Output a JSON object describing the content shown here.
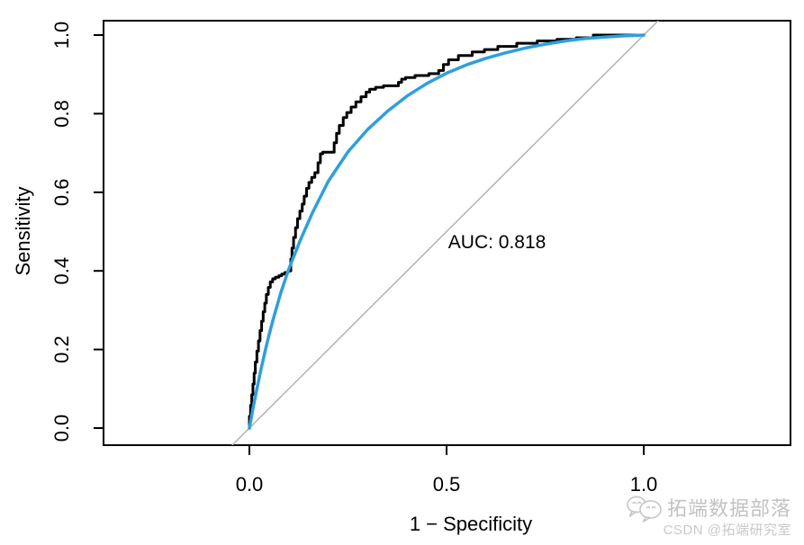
{
  "chart_data": {
    "type": "line",
    "title": "",
    "xlabel": "1 − Specificity",
    "ylabel": "Sensitivity",
    "xlim": [
      0,
      1
    ],
    "ylim": [
      0,
      1
    ],
    "grid": false,
    "legend": "none",
    "aspect_ratio": 1,
    "box_color": "#000000",
    "x_ticks": {
      "values": [
        0.0,
        0.5,
        1.0
      ],
      "labels": [
        "0.0",
        "0.5",
        "1.0"
      ]
    },
    "y_ticks": {
      "values": [
        0.0,
        0.2,
        0.4,
        0.6,
        0.8,
        1.0
      ],
      "labels": [
        "0.0",
        "0.2",
        "0.4",
        "0.6",
        "0.8",
        "1.0"
      ]
    },
    "annotation": {
      "text": "AUC: 0.818",
      "x": 0.657,
      "y": 0.476,
      "color": "#000000"
    },
    "auc": 0.818,
    "series": [
      {
        "name": "chance-diagonal",
        "type": "reference-line",
        "color": "#b3b3b3",
        "width": 1.5,
        "from": [
          0,
          0
        ],
        "to": [
          1,
          1
        ]
      },
      {
        "name": "empirical-roc",
        "type": "step",
        "color": "#000000",
        "width": 3,
        "points": [
          [
            0.0,
            0.0
          ],
          [
            0.003,
            0.03
          ],
          [
            0.006,
            0.058
          ],
          [
            0.009,
            0.085
          ],
          [
            0.012,
            0.112
          ],
          [
            0.015,
            0.14
          ],
          [
            0.019,
            0.168
          ],
          [
            0.023,
            0.196
          ],
          [
            0.027,
            0.222
          ],
          [
            0.031,
            0.248
          ],
          [
            0.035,
            0.272
          ],
          [
            0.039,
            0.296
          ],
          [
            0.043,
            0.318
          ],
          [
            0.048,
            0.34
          ],
          [
            0.053,
            0.358
          ],
          [
            0.059,
            0.372
          ],
          [
            0.066,
            0.38
          ],
          [
            0.075,
            0.384
          ],
          [
            0.082,
            0.388
          ],
          [
            0.09,
            0.392
          ],
          [
            0.098,
            0.396
          ],
          [
            0.105,
            0.4
          ],
          [
            0.108,
            0.43
          ],
          [
            0.112,
            0.458
          ],
          [
            0.117,
            0.485
          ],
          [
            0.122,
            0.51
          ],
          [
            0.128,
            0.533
          ],
          [
            0.134,
            0.552
          ],
          [
            0.139,
            0.57
          ],
          [
            0.145,
            0.59
          ],
          [
            0.151,
            0.61
          ],
          [
            0.158,
            0.625
          ],
          [
            0.166,
            0.638
          ],
          [
            0.174,
            0.65
          ],
          [
            0.18,
            0.675
          ],
          [
            0.186,
            0.698
          ],
          [
            0.215,
            0.702
          ],
          [
            0.221,
            0.726
          ],
          [
            0.228,
            0.75
          ],
          [
            0.238,
            0.77
          ],
          [
            0.247,
            0.79
          ],
          [
            0.258,
            0.803
          ],
          [
            0.27,
            0.817
          ],
          [
            0.283,
            0.83
          ],
          [
            0.296,
            0.843
          ],
          [
            0.305,
            0.855
          ],
          [
            0.32,
            0.862
          ],
          [
            0.34,
            0.867
          ],
          [
            0.378,
            0.871
          ],
          [
            0.386,
            0.88
          ],
          [
            0.396,
            0.888
          ],
          [
            0.42,
            0.892
          ],
          [
            0.455,
            0.897
          ],
          [
            0.48,
            0.902
          ],
          [
            0.492,
            0.91
          ],
          [
            0.505,
            0.925
          ],
          [
            0.53,
            0.937
          ],
          [
            0.565,
            0.948
          ],
          [
            0.596,
            0.957
          ],
          [
            0.63,
            0.963
          ],
          [
            0.678,
            0.971
          ],
          [
            0.73,
            0.979
          ],
          [
            0.78,
            0.985
          ],
          [
            0.829,
            0.989
          ],
          [
            0.872,
            0.993
          ],
          [
            0.897,
            1.0
          ],
          [
            1.0,
            1.0
          ]
        ]
      },
      {
        "name": "smoothed-roc",
        "type": "smooth",
        "color": "#2E9FDF",
        "width": 3.5,
        "points": [
          [
            0.0,
            0.0
          ],
          [
            0.01,
            0.055
          ],
          [
            0.02,
            0.105
          ],
          [
            0.03,
            0.152
          ],
          [
            0.04,
            0.196
          ],
          [
            0.05,
            0.238
          ],
          [
            0.06,
            0.276
          ],
          [
            0.08,
            0.345
          ],
          [
            0.1,
            0.405
          ],
          [
            0.13,
            0.48
          ],
          [
            0.16,
            0.548
          ],
          [
            0.2,
            0.628
          ],
          [
            0.25,
            0.703
          ],
          [
            0.3,
            0.76
          ],
          [
            0.35,
            0.806
          ],
          [
            0.4,
            0.845
          ],
          [
            0.45,
            0.877
          ],
          [
            0.5,
            0.903
          ],
          [
            0.55,
            0.924
          ],
          [
            0.6,
            0.941
          ],
          [
            0.65,
            0.955
          ],
          [
            0.7,
            0.967
          ],
          [
            0.75,
            0.977
          ],
          [
            0.8,
            0.985
          ],
          [
            0.85,
            0.991
          ],
          [
            0.9,
            0.995
          ],
          [
            0.95,
            0.998
          ],
          [
            1.0,
            1.0
          ]
        ]
      }
    ]
  },
  "watermark": {
    "line1": "拓端数据部落",
    "line2": "CSDN @拓端研究室",
    "icon": "wechat-icon",
    "color_line1": "#c2c2c2",
    "color_line2": "#c9c9c9"
  }
}
